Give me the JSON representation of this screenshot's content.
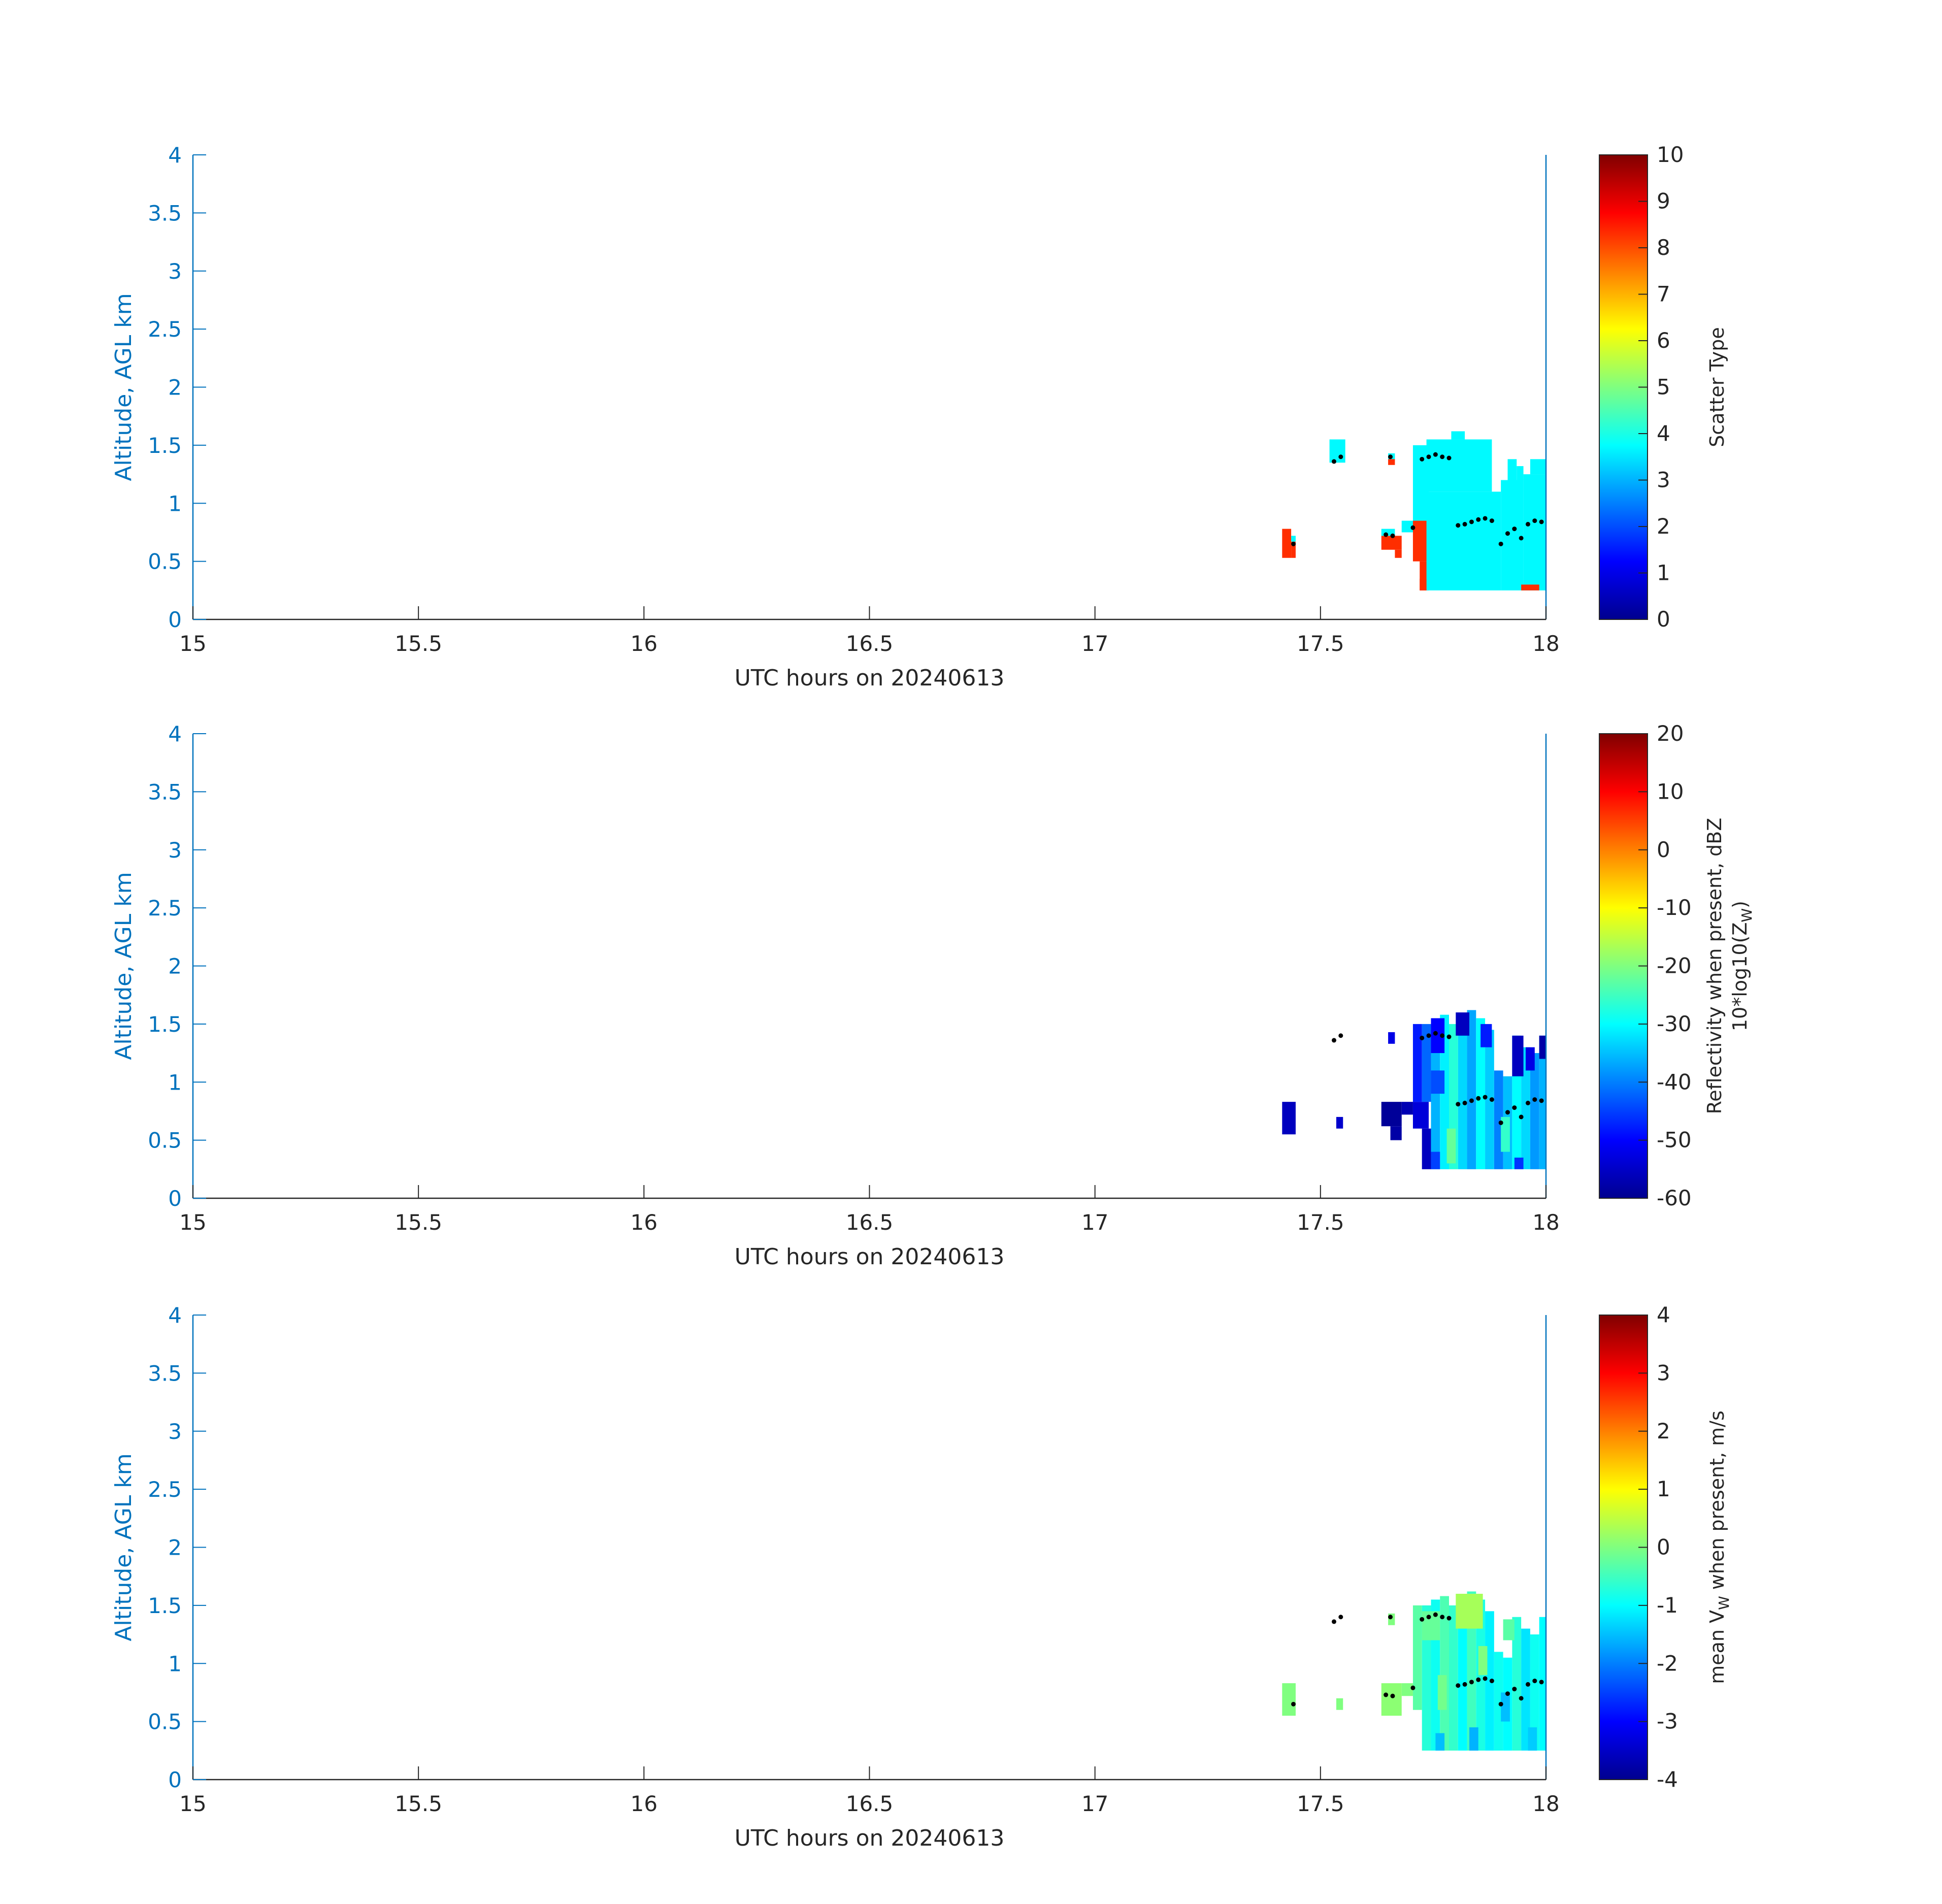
{
  "chart_data": [
    {
      "type": "heatmap",
      "title": "",
      "xlabel": "UTC hours on 20240613",
      "ylabel": "Altitude, AGL km",
      "xlim": [
        15,
        18
      ],
      "ylim": [
        0,
        4
      ],
      "xticks": [
        "15",
        "15.5",
        "16",
        "16.5",
        "17",
        "17.5",
        "18"
      ],
      "yticks": [
        "0",
        "0.5",
        "1",
        "1.5",
        "2",
        "2.5",
        "3",
        "3.5",
        "4"
      ],
      "colorbar": {
        "label": "Scatter Type",
        "label2": "",
        "range": [
          0,
          10
        ],
        "ticks": [
          "0",
          "1",
          "2",
          "3",
          "4",
          "5",
          "6",
          "7",
          "8",
          "9",
          "10"
        ]
      },
      "cells": [
        {
          "t0": 17.52,
          "t1": 17.555,
          "z0": 1.35,
          "z1": 1.55,
          "v": 3.7
        },
        {
          "t0": 17.65,
          "t1": 17.665,
          "z0": 1.37,
          "z1": 1.43,
          "v": 3.7
        },
        {
          "t0": 17.65,
          "t1": 17.665,
          "z0": 1.33,
          "z1": 1.38,
          "v": 8.3
        },
        {
          "t0": 17.415,
          "t1": 17.435,
          "z0": 0.53,
          "z1": 0.78,
          "v": 8.3
        },
        {
          "t0": 17.435,
          "t1": 17.445,
          "z0": 0.53,
          "z1": 0.67,
          "v": 8.3
        },
        {
          "t0": 17.435,
          "t1": 17.445,
          "z0": 0.67,
          "z1": 0.72,
          "v": 3.7
        },
        {
          "t0": 17.635,
          "t1": 17.68,
          "z0": 0.6,
          "z1": 0.72,
          "v": 8.3
        },
        {
          "t0": 17.635,
          "t1": 17.665,
          "z0": 0.72,
          "z1": 0.78,
          "v": 3.7
        },
        {
          "t0": 17.68,
          "t1": 17.705,
          "z0": 0.75,
          "z1": 0.85,
          "v": 3.7
        },
        {
          "t0": 17.665,
          "t1": 17.68,
          "z0": 0.53,
          "z1": 0.6,
          "v": 8.3
        },
        {
          "t0": 17.705,
          "t1": 17.74,
          "z0": 0.5,
          "z1": 0.85,
          "v": 8.3
        },
        {
          "t0": 17.72,
          "t1": 17.74,
          "z0": 0.25,
          "z1": 0.5,
          "v": 8.3
        },
        {
          "t0": 17.735,
          "t1": 17.9,
          "z0": 0.25,
          "z1": 1.1,
          "v": 3.7
        },
        {
          "t0": 17.705,
          "t1": 17.74,
          "z0": 0.85,
          "z1": 1.5,
          "v": 3.7
        },
        {
          "t0": 17.735,
          "t1": 17.88,
          "z0": 1.1,
          "z1": 1.55,
          "v": 3.7
        },
        {
          "t0": 17.79,
          "t1": 17.82,
          "z0": 1.55,
          "z1": 1.62,
          "v": 3.7
        },
        {
          "t0": 17.9,
          "t1": 17.95,
          "z0": 0.25,
          "z1": 1.2,
          "v": 3.7
        },
        {
          "t0": 17.915,
          "t1": 17.935,
          "z0": 1.2,
          "z1": 1.38,
          "v": 3.7
        },
        {
          "t0": 17.935,
          "t1": 17.95,
          "z0": 1.2,
          "z1": 1.32,
          "v": 3.7
        },
        {
          "t0": 17.95,
          "t1": 18.0,
          "z0": 0.25,
          "z1": 1.25,
          "v": 3.7
        },
        {
          "t0": 17.965,
          "t1": 18.0,
          "z0": 1.25,
          "z1": 1.38,
          "v": 3.7
        },
        {
          "t0": 17.945,
          "t1": 17.985,
          "z0": 0.25,
          "z1": 0.3,
          "v": 8.3
        },
        {
          "t0": 17.72,
          "t1": 17.735,
          "z0": 0.25,
          "z1": 0.35,
          "v": 8.3
        }
      ],
      "markers": [
        {
          "t": 17.53,
          "z": 1.36
        },
        {
          "t": 17.545,
          "z": 1.4
        },
        {
          "t": 17.655,
          "z": 1.4
        },
        {
          "t": 17.725,
          "z": 1.38
        },
        {
          "t": 17.74,
          "z": 1.4
        },
        {
          "t": 17.755,
          "z": 1.42
        },
        {
          "t": 17.77,
          "z": 1.4
        },
        {
          "t": 17.785,
          "z": 1.39
        },
        {
          "t": 17.44,
          "z": 0.65
        },
        {
          "t": 17.645,
          "z": 0.73
        },
        {
          "t": 17.66,
          "z": 0.72
        },
        {
          "t": 17.705,
          "z": 0.79
        },
        {
          "t": 17.805,
          "z": 0.81
        },
        {
          "t": 17.82,
          "z": 0.82
        },
        {
          "t": 17.835,
          "z": 0.84
        },
        {
          "t": 17.85,
          "z": 0.86
        },
        {
          "t": 17.865,
          "z": 0.87
        },
        {
          "t": 17.88,
          "z": 0.85
        },
        {
          "t": 17.9,
          "z": 0.65
        },
        {
          "t": 17.915,
          "z": 0.74
        },
        {
          "t": 17.93,
          "z": 0.78
        },
        {
          "t": 17.945,
          "z": 0.7
        },
        {
          "t": 17.96,
          "z": 0.82
        },
        {
          "t": 17.975,
          "z": 0.85
        },
        {
          "t": 17.99,
          "z": 0.84
        }
      ]
    },
    {
      "type": "heatmap",
      "title": "",
      "xlabel": "UTC hours on 20240613",
      "ylabel": "Altitude, AGL km",
      "xlim": [
        15,
        18
      ],
      "ylim": [
        0,
        4
      ],
      "xticks": [
        "15",
        "15.5",
        "16",
        "16.5",
        "17",
        "17.5",
        "18"
      ],
      "yticks": [
        "0",
        "0.5",
        "1",
        "1.5",
        "2",
        "2.5",
        "3",
        "3.5",
        "4"
      ],
      "colorbar": {
        "label": "Reflectivity when present, dBZ",
        "label2": "10*log10(Z",
        "label2_sub": "W",
        "label2_end": ")",
        "range": [
          -60,
          20
        ],
        "ticks": [
          "-60",
          "-50",
          "-40",
          "-30",
          "-20",
          "-10",
          "0",
          "10",
          "20"
        ]
      },
      "cells": [
        {
          "t0": 17.415,
          "t1": 17.445,
          "z0": 0.55,
          "z1": 0.83,
          "v": -55
        },
        {
          "t0": 17.535,
          "t1": 17.55,
          "z0": 0.6,
          "z1": 0.7,
          "v": -54
        },
        {
          "t0": 17.65,
          "t1": 17.665,
          "z0": 1.33,
          "z1": 1.43,
          "v": -52
        },
        {
          "t0": 17.635,
          "t1": 17.68,
          "z0": 0.62,
          "z1": 0.83,
          "v": -58
        },
        {
          "t0": 17.655,
          "t1": 17.68,
          "z0": 0.5,
          "z1": 0.62,
          "v": -57
        },
        {
          "t0": 17.68,
          "t1": 17.705,
          "z0": 0.72,
          "z1": 0.83,
          "v": -56
        },
        {
          "t0": 17.705,
          "t1": 17.74,
          "z0": 0.6,
          "z1": 0.83,
          "v": -53
        },
        {
          "t0": 17.725,
          "t1": 17.745,
          "z0": 0.25,
          "z1": 0.6,
          "v": -55
        },
        {
          "t0": 17.705,
          "t1": 17.725,
          "z0": 0.83,
          "z1": 1.5,
          "v": -48
        },
        {
          "t0": 17.725,
          "t1": 17.745,
          "z0": 0.83,
          "z1": 1.5,
          "v": -42
        },
        {
          "t0": 17.745,
          "t1": 17.765,
          "z0": 0.25,
          "z1": 1.55,
          "v": -36
        },
        {
          "t0": 17.765,
          "t1": 17.785,
          "z0": 0.25,
          "z1": 1.58,
          "v": -31
        },
        {
          "t0": 17.785,
          "t1": 17.805,
          "z0": 0.25,
          "z1": 1.5,
          "v": -27
        },
        {
          "t0": 17.805,
          "t1": 17.825,
          "z0": 0.25,
          "z1": 1.55,
          "v": -33
        },
        {
          "t0": 17.825,
          "t1": 17.845,
          "z0": 0.25,
          "z1": 1.62,
          "v": -37
        },
        {
          "t0": 17.845,
          "t1": 17.865,
          "z0": 0.25,
          "z1": 1.55,
          "v": -30
        },
        {
          "t0": 17.865,
          "t1": 17.885,
          "z0": 0.25,
          "z1": 1.45,
          "v": -34
        },
        {
          "t0": 17.885,
          "t1": 17.905,
          "z0": 0.25,
          "z1": 1.1,
          "v": -40
        },
        {
          "t0": 17.905,
          "t1": 17.925,
          "z0": 0.25,
          "z1": 1.05,
          "v": -35
        },
        {
          "t0": 17.925,
          "t1": 17.945,
          "z0": 0.25,
          "z1": 1.4,
          "v": -30
        },
        {
          "t0": 17.945,
          "t1": 17.965,
          "z0": 0.25,
          "z1": 1.3,
          "v": -33
        },
        {
          "t0": 17.965,
          "t1": 17.985,
          "z0": 0.25,
          "z1": 1.25,
          "v": -38
        },
        {
          "t0": 17.985,
          "t1": 18.0,
          "z0": 0.25,
          "z1": 1.4,
          "v": -36
        },
        {
          "t0": 17.745,
          "t1": 17.775,
          "z0": 1.25,
          "z1": 1.55,
          "v": -50
        },
        {
          "t0": 17.8,
          "t1": 17.83,
          "z0": 1.4,
          "z1": 1.6,
          "v": -55
        },
        {
          "t0": 17.855,
          "t1": 17.88,
          "z0": 1.3,
          "z1": 1.5,
          "v": -48
        },
        {
          "t0": 17.925,
          "t1": 17.95,
          "z0": 1.05,
          "z1": 1.4,
          "v": -55
        },
        {
          "t0": 17.955,
          "t1": 17.975,
          "z0": 1.1,
          "z1": 1.3,
          "v": -52
        },
        {
          "t0": 17.985,
          "t1": 18.0,
          "z0": 1.2,
          "z1": 1.4,
          "v": -57
        },
        {
          "t0": 17.745,
          "t1": 17.775,
          "z0": 0.9,
          "z1": 1.1,
          "v": -44
        },
        {
          "t0": 17.78,
          "t1": 17.8,
          "z0": 0.3,
          "z1": 0.6,
          "v": -22
        },
        {
          "t0": 17.9,
          "t1": 17.92,
          "z0": 0.4,
          "z1": 0.7,
          "v": -26
        },
        {
          "t0": 17.745,
          "t1": 17.765,
          "z0": 0.25,
          "z1": 0.4,
          "v": -45
        },
        {
          "t0": 17.93,
          "t1": 17.95,
          "z0": 0.25,
          "z1": 0.35,
          "v": -46
        }
      ],
      "markers": [
        {
          "t": 17.53,
          "z": 1.36
        },
        {
          "t": 17.545,
          "z": 1.4
        },
        {
          "t": 17.725,
          "z": 1.38
        },
        {
          "t": 17.74,
          "z": 1.4
        },
        {
          "t": 17.755,
          "z": 1.42
        },
        {
          "t": 17.77,
          "z": 1.4
        },
        {
          "t": 17.785,
          "z": 1.39
        },
        {
          "t": 17.805,
          "z": 0.81
        },
        {
          "t": 17.82,
          "z": 0.82
        },
        {
          "t": 17.835,
          "z": 0.84
        },
        {
          "t": 17.85,
          "z": 0.86
        },
        {
          "t": 17.865,
          "z": 0.87
        },
        {
          "t": 17.88,
          "z": 0.85
        },
        {
          "t": 17.9,
          "z": 0.65
        },
        {
          "t": 17.915,
          "z": 0.74
        },
        {
          "t": 17.93,
          "z": 0.78
        },
        {
          "t": 17.945,
          "z": 0.7
        },
        {
          "t": 17.96,
          "z": 0.82
        },
        {
          "t": 17.975,
          "z": 0.85
        },
        {
          "t": 17.99,
          "z": 0.84
        }
      ]
    },
    {
      "type": "heatmap",
      "title": "",
      "xlabel": "UTC hours on 20240613",
      "ylabel": "Altitude, AGL km",
      "xlim": [
        15,
        18
      ],
      "ylim": [
        0,
        4
      ],
      "xticks": [
        "15",
        "15.5",
        "16",
        "16.5",
        "17",
        "17.5",
        "18"
      ],
      "yticks": [
        "0",
        "0.5",
        "1",
        "1.5",
        "2",
        "2.5",
        "3",
        "3.5",
        "4"
      ],
      "colorbar": {
        "label": "mean V",
        "label_sub": "W",
        "label_end": " when present, m/s",
        "label2": "",
        "range": [
          -4,
          4
        ],
        "ticks": [
          "-4",
          "-3",
          "-2",
          "-1",
          "0",
          "1",
          "2",
          "3",
          "4"
        ]
      },
      "cells": [
        {
          "t0": 17.415,
          "t1": 17.445,
          "z0": 0.55,
          "z1": 0.83,
          "v": 0.0
        },
        {
          "t0": 17.535,
          "t1": 17.55,
          "z0": 0.6,
          "z1": 0.7,
          "v": 0.0
        },
        {
          "t0": 17.65,
          "t1": 17.665,
          "z0": 1.33,
          "z1": 1.43,
          "v": 0.0
        },
        {
          "t0": 17.635,
          "t1": 17.68,
          "z0": 0.55,
          "z1": 0.83,
          "v": 0.1
        },
        {
          "t0": 17.68,
          "t1": 17.705,
          "z0": 0.72,
          "z1": 0.83,
          "v": 0.0
        },
        {
          "t0": 17.705,
          "t1": 17.725,
          "z0": 0.6,
          "z1": 1.5,
          "v": -0.3
        },
        {
          "t0": 17.725,
          "t1": 17.745,
          "z0": 0.25,
          "z1": 1.5,
          "v": -0.7
        },
        {
          "t0": 17.745,
          "t1": 17.765,
          "z0": 0.25,
          "z1": 1.55,
          "v": -0.9
        },
        {
          "t0": 17.765,
          "t1": 17.785,
          "z0": 0.25,
          "z1": 1.58,
          "v": -0.4
        },
        {
          "t0": 17.785,
          "t1": 17.805,
          "z0": 0.25,
          "z1": 1.5,
          "v": -0.6
        },
        {
          "t0": 17.805,
          "t1": 17.825,
          "z0": 0.25,
          "z1": 1.55,
          "v": -1.0
        },
        {
          "t0": 17.825,
          "t1": 17.845,
          "z0": 0.25,
          "z1": 1.62,
          "v": -0.5
        },
        {
          "t0": 17.845,
          "t1": 17.865,
          "z0": 0.25,
          "z1": 1.55,
          "v": -0.8
        },
        {
          "t0": 17.865,
          "t1": 17.885,
          "z0": 0.25,
          "z1": 1.45,
          "v": -1.1
        },
        {
          "t0": 17.885,
          "t1": 17.905,
          "z0": 0.25,
          "z1": 1.1,
          "v": -0.9
        },
        {
          "t0": 17.905,
          "t1": 17.925,
          "z0": 0.25,
          "z1": 1.05,
          "v": -1.0
        },
        {
          "t0": 17.925,
          "t1": 17.945,
          "z0": 0.25,
          "z1": 1.4,
          "v": -0.7
        },
        {
          "t0": 17.945,
          "t1": 17.965,
          "z0": 0.25,
          "z1": 1.3,
          "v": -1.2
        },
        {
          "t0": 17.965,
          "t1": 17.985,
          "z0": 0.25,
          "z1": 1.25,
          "v": -0.9
        },
        {
          "t0": 17.985,
          "t1": 18.0,
          "z0": 0.25,
          "z1": 1.4,
          "v": -1.0
        },
        {
          "t0": 17.8,
          "t1": 17.86,
          "z0": 1.3,
          "z1": 1.6,
          "v": 0.3
        },
        {
          "t0": 17.725,
          "t1": 17.765,
          "z0": 1.2,
          "z1": 1.45,
          "v": -0.2
        },
        {
          "t0": 17.905,
          "t1": 17.93,
          "z0": 1.2,
          "z1": 1.38,
          "v": -0.3
        },
        {
          "t0": 17.76,
          "t1": 17.78,
          "z0": 0.6,
          "z1": 0.9,
          "v": -0.1
        },
        {
          "t0": 17.85,
          "t1": 17.87,
          "z0": 0.9,
          "z1": 1.15,
          "v": 0.0
        },
        {
          "t0": 17.755,
          "t1": 17.775,
          "z0": 0.25,
          "z1": 0.4,
          "v": -1.5
        },
        {
          "t0": 17.83,
          "t1": 17.85,
          "z0": 0.25,
          "z1": 0.45,
          "v": -1.6
        },
        {
          "t0": 17.96,
          "t1": 17.98,
          "z0": 0.25,
          "z1": 0.45,
          "v": -1.4
        },
        {
          "t0": 17.9,
          "t1": 17.92,
          "z0": 0.5,
          "z1": 0.75,
          "v": -1.5
        }
      ],
      "markers": [
        {
          "t": 17.53,
          "z": 1.36
        },
        {
          "t": 17.545,
          "z": 1.4
        },
        {
          "t": 17.655,
          "z": 1.4
        },
        {
          "t": 17.725,
          "z": 1.38
        },
        {
          "t": 17.74,
          "z": 1.4
        },
        {
          "t": 17.755,
          "z": 1.42
        },
        {
          "t": 17.77,
          "z": 1.4
        },
        {
          "t": 17.785,
          "z": 1.39
        },
        {
          "t": 17.44,
          "z": 0.65
        },
        {
          "t": 17.645,
          "z": 0.73
        },
        {
          "t": 17.66,
          "z": 0.72
        },
        {
          "t": 17.705,
          "z": 0.79
        },
        {
          "t": 17.805,
          "z": 0.81
        },
        {
          "t": 17.82,
          "z": 0.82
        },
        {
          "t": 17.835,
          "z": 0.84
        },
        {
          "t": 17.85,
          "z": 0.86
        },
        {
          "t": 17.865,
          "z": 0.87
        },
        {
          "t": 17.88,
          "z": 0.85
        },
        {
          "t": 17.9,
          "z": 0.65
        },
        {
          "t": 17.915,
          "z": 0.74
        },
        {
          "t": 17.93,
          "z": 0.78
        },
        {
          "t": 17.945,
          "z": 0.7
        },
        {
          "t": 17.96,
          "z": 0.82
        },
        {
          "t": 17.975,
          "z": 0.85
        },
        {
          "t": 17.99,
          "z": 0.84
        }
      ]
    }
  ],
  "colors": {
    "axis_left": "#0072BD",
    "axis_bottom": "#262626",
    "marker": "#000000"
  }
}
